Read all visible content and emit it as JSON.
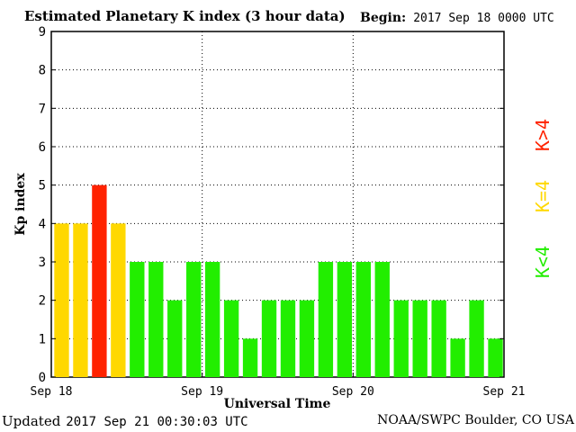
{
  "header": {
    "title": "Estimated Planetary K index (3 hour data)",
    "begin_label": "Begin:",
    "begin_value": "2017 Sep 18 0000 UTC"
  },
  "footer": {
    "updated_label": "Updated",
    "updated_value": "2017 Sep 21 00:30:03 UTC",
    "credit": "NOAA/SWPC Boulder, CO USA"
  },
  "legend": [
    {
      "label": "K>4",
      "color": "#ff2200"
    },
    {
      "label": "K=4",
      "color": "#ffd800"
    },
    {
      "label": "K<4",
      "color": "#22ee00"
    }
  ],
  "chart_data": {
    "type": "bar",
    "title": "Estimated Planetary K index (3 hour data)",
    "xlabel": "Universal Time",
    "ylabel": "Kp index",
    "ylim": [
      0,
      9
    ],
    "yticks": [
      "0",
      "1",
      "2",
      "3",
      "4",
      "5",
      "6",
      "7",
      "8",
      "9"
    ],
    "xticks": [
      "Sep 18",
      "Sep 19",
      "Sep 20",
      "Sep 21"
    ],
    "grid": true,
    "legend_position": "right",
    "interval_hours": 3,
    "values": [
      4,
      4,
      5,
      4,
      3,
      3,
      2,
      3,
      3,
      2,
      1,
      2,
      2,
      2,
      3,
      3,
      3,
      3,
      2,
      2,
      2,
      1,
      2,
      1
    ],
    "colors": {
      "low": "#22ee00",
      "equal": "#ffd800",
      "high": "#ff2200"
    }
  }
}
